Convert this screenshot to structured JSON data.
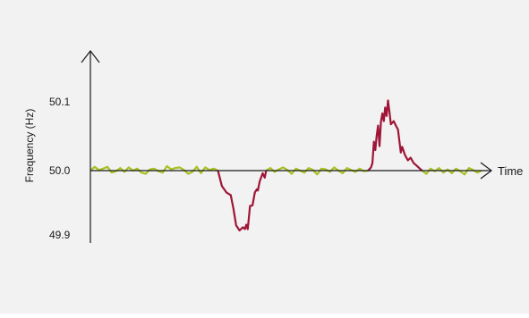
{
  "chart_data": {
    "type": "line",
    "xlabel": "Time",
    "ylabel": "Frequency (Hz)",
    "yticks": [
      "50.1",
      "50.0",
      "49.9"
    ],
    "ylim": [
      49.885,
      50.19
    ],
    "xlim": [
      0,
      100
    ],
    "grid": false,
    "colors": {
      "normal": "#a9c123",
      "deviation": "#9e1537",
      "axis": "#1a1a1a"
    },
    "series": [
      {
        "segments": [
          {
            "kind": "normal",
            "x": [
              0,
              1.5,
              3,
              4.5,
              6,
              7.5,
              9,
              10.5,
              12,
              13.5,
              15,
              16.5,
              18,
              19.5,
              21,
              22.5,
              24,
              25.5,
              27,
              28.5,
              30,
              31.5,
              33,
              34.5,
              36,
              37.5,
              39,
              40.5,
              42,
              43.5,
              45
            ],
            "y": [
              50.0,
              50.006,
              50.001,
              50.003,
              50.006,
              49.997,
              49.999,
              50.004,
              49.998,
              50.005,
              50.0,
              50.003,
              49.997,
              49.995,
              50.002,
              50.003,
              49.999,
              49.997,
              50.007,
              50.002,
              50.004,
              50.005,
              50.001,
              49.995,
              49.998,
              50.006,
              49.996,
              50.005,
              50.001,
              50.003,
              50.0
            ]
          },
          {
            "kind": "deviation",
            "x": [
              45,
              46.4,
              48,
              49.5,
              50.5,
              51.4,
              52.6,
              53.8,
              54.5,
              55,
              55.5,
              56.3,
              57.2,
              58,
              58.7,
              59.1,
              59.7,
              60.3,
              60.8,
              61.5,
              62
            ],
            "y": [
              50.0,
              49.976,
              49.966,
              49.962,
              49.94,
              49.915,
              49.907,
              49.912,
              49.909,
              49.916,
              49.909,
              49.945,
              49.946,
              49.966,
              49.971,
              49.969,
              49.983,
              49.99,
              49.996,
              49.989,
              50.0
            ]
          },
          {
            "kind": "normal",
            "x": [
              62,
              63.5,
              65,
              66.5,
              68,
              69.5,
              71,
              72.5,
              74,
              75.5,
              77,
              78.5,
              80,
              81.5,
              83,
              84.5,
              86,
              87.5,
              89,
              90.5,
              92,
              93.5,
              95,
              96.5,
              98
            ],
            "y": [
              50.0,
              50.004,
              49.998,
              50.002,
              50.005,
              50.001,
              49.995,
              50.003,
              50.0,
              49.997,
              50.004,
              50.001,
              49.994,
              50.003,
              50.002,
              49.998,
              50.005,
              50.0,
              49.996,
              50.004,
              50.001,
              49.998,
              50.003,
              49.999,
              50.0
            ]
          },
          {
            "kind": "deviation",
            "x": [
              98,
              99,
              99.5,
              100,
              100.5,
              101,
              101.5,
              102,
              102.5,
              103,
              103.5,
              104,
              104.5,
              105,
              105.5,
              106,
              107,
              108,
              108.5,
              109,
              109.5,
              110,
              111,
              112,
              113,
              114,
              115,
              116,
              117
            ],
            "y": [
              50.0,
              50.005,
              50.012,
              50.045,
              50.032,
              50.054,
              50.07,
              50.038,
              50.076,
              50.089,
              50.077,
              50.098,
              50.085,
              50.109,
              50.091,
              50.072,
              50.077,
              50.068,
              50.064,
              50.046,
              50.028,
              50.037,
              50.024,
              50.016,
              50.02,
              50.012,
              50.008,
              50.004,
              50.0
            ]
          },
          {
            "kind": "normal",
            "x": [
              117,
              118.5,
              120,
              121.5,
              123,
              124.5,
              126,
              127.5,
              129,
              130.5,
              132,
              133.5,
              135,
              136.5,
              138
            ],
            "y": [
              50.0,
              49.995,
              50.003,
              49.999,
              50.004,
              49.997,
              50.002,
              49.996,
              50.003,
              49.999,
              49.994,
              50.004,
              50.001,
              49.997,
              50.0
            ]
          }
        ]
      }
    ]
  }
}
